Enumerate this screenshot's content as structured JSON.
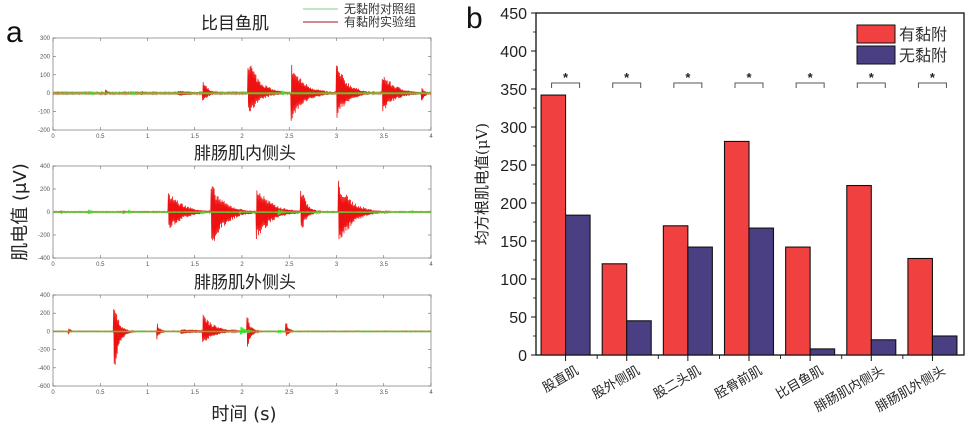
{
  "figure": {
    "panel_a_label": "a",
    "panel_b_label": "b"
  },
  "chart_data": [
    {
      "type": "line",
      "panel": "a",
      "shared_ylabel": "肌电值 (μV)",
      "shared_xlabel": "时间 (s)",
      "legend": {
        "placement": "top-right",
        "entries": [
          {
            "name": "无黏附对照组",
            "color": "#4cd94c"
          },
          {
            "name": "有黏附实验组",
            "color": "#c23030"
          }
        ]
      },
      "subplots": [
        {
          "title": "比目鱼肌",
          "xlim": [
            0,
            4
          ],
          "ylim": [
            -200,
            300
          ],
          "xticks": [
            "0",
            "0.5",
            "1",
            "1.5",
            "2",
            "2.5",
            "3",
            "3.5",
            "4"
          ],
          "yticks": [
            "300",
            "200",
            "100",
            "0",
            "-100",
            "-200"
          ],
          "series": [
            {
              "name": "有黏附实验组",
              "color": "#ee1111",
              "bursts": [
                {
                  "t": 0.55,
                  "max": 30,
                  "min": -20,
                  "decay": 0.03
                },
                {
                  "t": 0.94,
                  "max": 20,
                  "min": -15,
                  "decay": 0.02
                },
                {
                  "t": 1.32,
                  "max": 15,
                  "min": -15,
                  "decay": 0.25
                },
                {
                  "t": 1.58,
                  "max": 80,
                  "min": -60,
                  "decay": 0.06
                },
                {
                  "t": 2.06,
                  "max": 225,
                  "min": -135,
                  "decay": 0.12
                },
                {
                  "t": 2.52,
                  "max": 170,
                  "min": -160,
                  "decay": 0.14
                },
                {
                  "t": 3.0,
                  "max": 170,
                  "min": -140,
                  "decay": 0.12
                },
                {
                  "t": 3.48,
                  "max": 120,
                  "min": -110,
                  "decay": 0.14
                },
                {
                  "t": 3.9,
                  "max": 35,
                  "min": -50,
                  "decay": 0.04
                }
              ]
            },
            {
              "name": "无黏附对照组",
              "color": "#33ee33",
              "bursts": [
                {
                  "t": 0.4,
                  "max": 12,
                  "min": -12,
                  "decay": 0.02
                },
                {
                  "t": 0.83,
                  "max": 15,
                  "min": -15,
                  "decay": 0.03
                },
                {
                  "t": 2.02,
                  "max": 12,
                  "min": -12,
                  "decay": 0.02
                },
                {
                  "t": 2.42,
                  "max": 18,
                  "min": -18,
                  "decay": 0.03
                }
              ]
            }
          ]
        },
        {
          "title": "腓肠肌内侧头",
          "xlim": [
            0,
            4
          ],
          "ylim": [
            -400,
            400
          ],
          "xticks": [
            "0",
            "0.5",
            "1",
            "1.5",
            "2",
            "2.5",
            "3",
            "3.5",
            "4"
          ],
          "yticks": [
            "400",
            "200",
            "0",
            "-200",
            "-400"
          ],
          "series": [
            {
              "name": "有黏附实验组",
              "color": "#ee1111",
              "bursts": [
                {
                  "t": 0.08,
                  "max": 15,
                  "min": -20,
                  "decay": 0.01
                },
                {
                  "t": 0.74,
                  "max": 25,
                  "min": -20,
                  "decay": 0.02
                },
                {
                  "t": 1.22,
                  "max": 200,
                  "min": -180,
                  "decay": 0.15
                },
                {
                  "t": 1.67,
                  "max": 265,
                  "min": -350,
                  "decay": 0.14
                },
                {
                  "t": 2.15,
                  "max": 250,
                  "min": -270,
                  "decay": 0.15
                },
                {
                  "t": 2.62,
                  "max": 260,
                  "min": -210,
                  "decay": 0.06
                },
                {
                  "t": 3.02,
                  "max": 280,
                  "min": -320,
                  "decay": 0.14
                }
              ]
            },
            {
              "name": "无黏附对照组",
              "color": "#33ee33",
              "bursts": [
                {
                  "t": 0.37,
                  "max": 30,
                  "min": -30,
                  "decay": 0.03
                },
                {
                  "t": 0.8,
                  "max": 20,
                  "min": -20,
                  "decay": 0.02
                },
                {
                  "t": 1.57,
                  "max": 20,
                  "min": -20,
                  "decay": 0.02
                },
                {
                  "t": 1.97,
                  "max": 15,
                  "min": -15,
                  "decay": 0.02
                },
                {
                  "t": 2.38,
                  "max": 30,
                  "min": -30,
                  "decay": 0.04
                },
                {
                  "t": 2.78,
                  "max": 20,
                  "min": -20,
                  "decay": 0.02
                },
                {
                  "t": 3.8,
                  "max": 10,
                  "min": -10,
                  "decay": 0.02
                }
              ]
            }
          ]
        },
        {
          "title": "腓肠肌外侧头",
          "xlim": [
            0,
            4
          ],
          "ylim": [
            -600,
            400
          ],
          "xticks": [
            "0",
            "0.5",
            "1",
            "1.5",
            "2",
            "2.5",
            "3",
            "3.5",
            "4"
          ],
          "yticks": [
            "400",
            "200",
            "0",
            "-200",
            "-400",
            "-600"
          ],
          "series": [
            {
              "name": "有黏附实验组",
              "color": "#ee1111",
              "bursts": [
                {
                  "t": 0.16,
                  "max": 60,
                  "min": -40,
                  "decay": 0.02
                },
                {
                  "t": 0.64,
                  "max": 400,
                  "min": -600,
                  "decay": 0.05
                },
                {
                  "t": 1.1,
                  "max": 110,
                  "min": -100,
                  "decay": 0.03
                },
                {
                  "t": 1.35,
                  "max": 30,
                  "min": -30,
                  "decay": 0.3
                },
                {
                  "t": 1.58,
                  "max": 210,
                  "min": -150,
                  "decay": 0.12
                },
                {
                  "t": 2.05,
                  "max": 210,
                  "min": -220,
                  "decay": 0.04
                },
                {
                  "t": 2.46,
                  "max": 140,
                  "min": -90,
                  "decay": 0.03
                }
              ]
            },
            {
              "name": "无黏附对照组",
              "color": "#33ee33",
              "bursts": [
                {
                  "t": 1.98,
                  "max": 80,
                  "min": -50,
                  "decay": 0.05
                },
                {
                  "t": 2.38,
                  "max": 25,
                  "min": -25,
                  "decay": 0.03
                },
                {
                  "t": 3.78,
                  "max": 10,
                  "min": -10,
                  "decay": 0.02
                }
              ]
            }
          ]
        }
      ]
    },
    {
      "type": "bar",
      "panel": "b",
      "title": "",
      "xlabel": "",
      "ylabel": "均方根肌电值(μV)",
      "ylim": [
        0,
        450
      ],
      "yticks": [
        0,
        50,
        100,
        150,
        200,
        250,
        300,
        350,
        400,
        450
      ],
      "categories": [
        "股直肌",
        "股外侧肌",
        "股二头肌",
        "胫骨前肌",
        "比目鱼肌",
        "腓肠肌内侧头",
        "腓肠肌外侧头"
      ],
      "series": [
        {
          "name": "有黏附",
          "color": "#f04040",
          "values": [
            342,
            120,
            170,
            281,
            142,
            223,
            127
          ]
        },
        {
          "name": "无黏附",
          "color": "#4a3f82",
          "values": [
            184,
            45,
            142,
            167,
            8,
            20,
            25
          ]
        }
      ],
      "significance": [
        "*",
        "*",
        "*",
        "*",
        "*",
        "*",
        "*"
      ],
      "legend": {
        "placement": "top-right"
      },
      "grid": false
    }
  ]
}
